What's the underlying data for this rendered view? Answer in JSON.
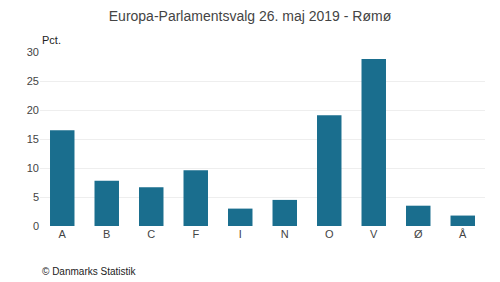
{
  "chart_data": {
    "type": "bar",
    "title": "Europa-Parlamentsvalg 26. maj 2019 - Rømø",
    "categories": [
      "A",
      "B",
      "C",
      "F",
      "I",
      "N",
      "O",
      "V",
      "Ø",
      "Å"
    ],
    "values": [
      16.5,
      7.8,
      6.7,
      9.6,
      3.0,
      4.5,
      19.1,
      28.8,
      3.5,
      1.8
    ],
    "color": "#1a6e8e",
    "ylabel": "Pct.",
    "ylim": [
      0,
      30
    ],
    "yticks": [
      0,
      5,
      10,
      15,
      20,
      25,
      30
    ],
    "grid": true,
    "annotations": [
      "© Danmarks Statistik"
    ]
  }
}
